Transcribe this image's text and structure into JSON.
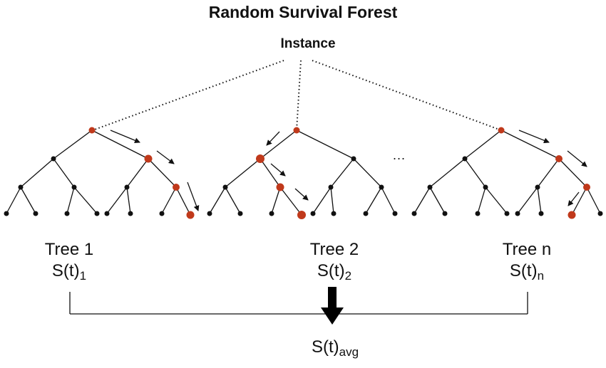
{
  "title": "Random Survival Forest",
  "instance_label": "Instance",
  "ellipsis": "...",
  "trees": [
    {
      "name": "Tree 1",
      "survival": "S(t)",
      "sub": "1"
    },
    {
      "name": "Tree 2",
      "survival": "S(t)",
      "sub": "2"
    },
    {
      "name": "Tree n",
      "survival": "S(t)",
      "sub": "n"
    }
  ],
  "aggregate": {
    "survival": "S(t)",
    "sub": "avg"
  },
  "colors": {
    "path_node": "#c0391b",
    "node": "#111111",
    "line": "#111111"
  }
}
